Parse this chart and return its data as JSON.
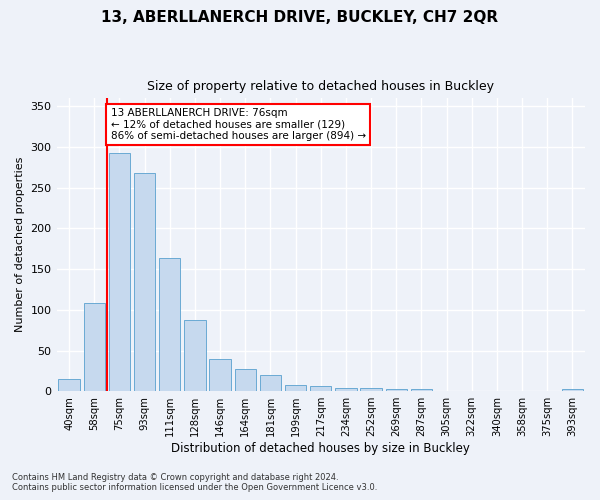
{
  "title": "13, ABERLLANERCH DRIVE, BUCKLEY, CH7 2QR",
  "subtitle": "Size of property relative to detached houses in Buckley",
  "xlabel": "Distribution of detached houses by size in Buckley",
  "ylabel": "Number of detached properties",
  "bar_color": "#c6d9ee",
  "bar_edge_color": "#6aaad4",
  "bg_color": "#eef2f9",
  "grid_color": "#ffffff",
  "categories": [
    "40sqm",
    "58sqm",
    "75sqm",
    "93sqm",
    "111sqm",
    "128sqm",
    "146sqm",
    "164sqm",
    "181sqm",
    "199sqm",
    "217sqm",
    "234sqm",
    "252sqm",
    "269sqm",
    "287sqm",
    "305sqm",
    "322sqm",
    "340sqm",
    "358sqm",
    "375sqm",
    "393sqm"
  ],
  "values": [
    15,
    109,
    293,
    268,
    164,
    87,
    40,
    27,
    20,
    8,
    6,
    4,
    4,
    3,
    3,
    0,
    0,
    0,
    0,
    0,
    3
  ],
  "annotation_title": "13 ABERLLANERCH DRIVE: 76sqm",
  "annotation_line1": "← 12% of detached houses are smaller (129)",
  "annotation_line2": "86% of semi-detached houses are larger (894) →",
  "footnote1": "Contains HM Land Registry data © Crown copyright and database right 2024.",
  "footnote2": "Contains public sector information licensed under the Open Government Licence v3.0.",
  "ylim": [
    0,
    360
  ],
  "yticks": [
    0,
    50,
    100,
    150,
    200,
    250,
    300,
    350
  ],
  "red_line_index": 2
}
